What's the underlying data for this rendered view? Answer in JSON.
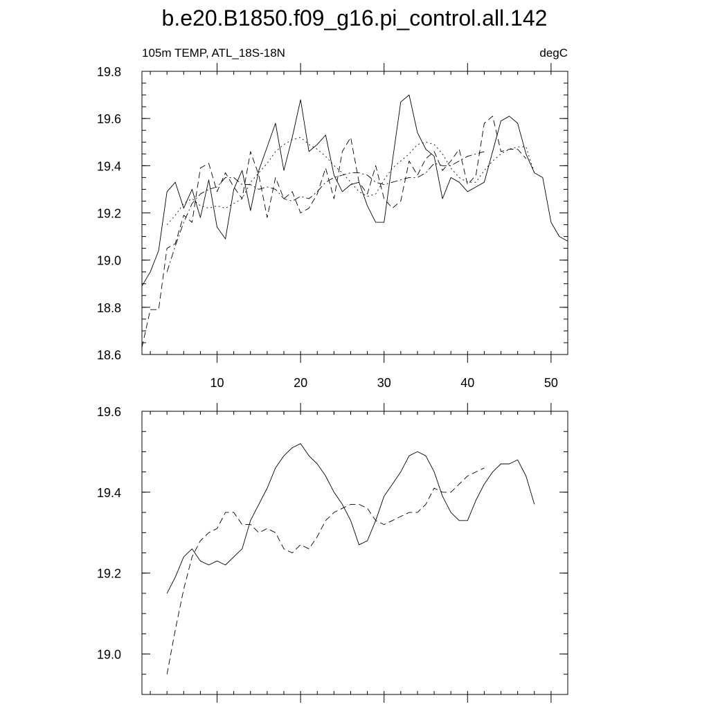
{
  "figure": {
    "title": "b.e20.B1850.f09_g16.pi_control.all.142"
  },
  "chart_data": [
    {
      "type": "line",
      "left_label": "105m TEMP, ATL_18S-18N",
      "right_label": "degC",
      "xlim": [
        1,
        52
      ],
      "ylim": [
        18.6,
        19.8
      ],
      "yticks": [
        18.6,
        18.8,
        19.0,
        19.2,
        19.4,
        19.6,
        19.8
      ],
      "xticks": [
        10,
        20,
        30,
        40,
        50
      ],
      "xtick_labels_shown": true,
      "series": [
        {
          "style": "solid",
          "x": [
            1,
            2,
            3,
            4,
            5,
            6,
            7,
            8,
            9,
            10,
            11,
            12,
            13,
            14,
            15,
            16,
            17,
            18,
            19,
            20,
            21,
            22,
            23,
            24,
            25,
            26,
            27,
            28,
            29,
            30,
            31,
            32,
            33,
            34,
            35,
            36,
            37,
            38,
            39,
            40,
            41,
            42,
            43,
            44,
            45,
            46,
            47,
            48,
            49,
            50,
            51,
            52
          ],
          "y": [
            18.89,
            18.95,
            19.04,
            19.29,
            19.33,
            19.22,
            19.3,
            19.18,
            19.34,
            19.14,
            19.09,
            19.3,
            19.38,
            19.21,
            19.38,
            19.48,
            19.58,
            19.38,
            19.52,
            19.68,
            19.46,
            19.49,
            19.53,
            19.36,
            19.29,
            19.32,
            19.33,
            19.23,
            19.16,
            19.16,
            19.42,
            19.67,
            19.7,
            19.54,
            19.47,
            19.44,
            19.26,
            19.35,
            19.33,
            19.29,
            19.31,
            19.33,
            19.46,
            19.59,
            19.61,
            19.58,
            19.45,
            19.37,
            19.35,
            19.16,
            19.1,
            19.08
          ]
        },
        {
          "style": "dashed",
          "x": [
            1,
            2,
            3,
            4,
            5,
            6,
            7,
            8,
            9,
            10,
            11,
            12,
            13,
            14,
            15,
            16,
            17,
            18,
            19,
            20,
            21,
            22,
            23,
            24,
            25,
            26,
            27,
            28,
            29,
            30,
            31,
            32,
            33,
            34,
            35,
            36,
            37,
            38,
            39,
            40,
            41,
            42,
            43,
            44,
            45,
            46,
            47
          ],
          "y": [
            18.63,
            18.79,
            18.79,
            19.05,
            19.07,
            19.19,
            19.16,
            19.39,
            19.41,
            19.29,
            19.37,
            19.31,
            19.26,
            19.46,
            19.36,
            19.18,
            19.35,
            19.26,
            19.29,
            19.2,
            19.22,
            19.28,
            19.39,
            19.26,
            19.46,
            19.52,
            19.33,
            19.28,
            19.4,
            19.26,
            19.22,
            19.25,
            19.42,
            19.36,
            19.43,
            19.46,
            19.38,
            19.42,
            19.47,
            19.32,
            19.36,
            19.58,
            19.61,
            19.46,
            19.47,
            19.47,
            19.43
          ]
        },
        {
          "style": "dotted",
          "x": [
            4,
            5,
            6,
            7,
            8,
            9,
            10,
            11,
            12,
            13,
            14,
            15,
            16,
            17,
            18,
            19,
            20,
            21,
            22,
            23,
            24,
            25,
            26,
            27,
            28,
            29,
            30,
            31,
            32,
            33,
            34,
            35,
            36,
            37,
            38,
            39,
            40,
            41,
            42,
            43,
            44,
            45,
            46,
            47,
            48
          ],
          "y": [
            19.15,
            19.19,
            19.24,
            19.26,
            19.23,
            19.22,
            19.23,
            19.22,
            19.24,
            19.26,
            19.33,
            19.37,
            19.41,
            19.46,
            19.49,
            19.51,
            19.52,
            19.49,
            19.47,
            19.44,
            19.4,
            19.37,
            19.33,
            19.29,
            19.27,
            19.28,
            19.34,
            19.39,
            19.42,
            19.45,
            19.49,
            19.5,
            19.49,
            19.45,
            19.39,
            19.35,
            19.33,
            19.33,
            19.38,
            19.42,
            19.45,
            19.47,
            19.48,
            19.48,
            19.37
          ]
        },
        {
          "style": "dashdot",
          "x": [
            4,
            5,
            6,
            7,
            8,
            9,
            10,
            11,
            12,
            13,
            14,
            15,
            16,
            17,
            18,
            19,
            20,
            21,
            22,
            23,
            24,
            25,
            26,
            27,
            28,
            29,
            30,
            31,
            32,
            33,
            34,
            35,
            36,
            37,
            38,
            39,
            40,
            41,
            42
          ],
          "y": [
            18.95,
            19.06,
            19.16,
            19.24,
            19.28,
            19.3,
            19.31,
            19.35,
            19.35,
            19.32,
            19.32,
            19.3,
            19.31,
            19.3,
            19.26,
            19.25,
            19.27,
            19.26,
            19.29,
            19.33,
            19.35,
            19.36,
            19.37,
            19.37,
            19.36,
            19.33,
            19.32,
            19.33,
            19.34,
            19.35,
            19.35,
            19.37,
            19.41,
            19.4,
            19.4,
            19.42,
            19.44,
            19.45,
            19.46
          ]
        }
      ]
    },
    {
      "type": "line",
      "xlim": [
        1,
        52
      ],
      "ylim": [
        18.9,
        19.6
      ],
      "yticks": [
        19.0,
        19.2,
        19.4,
        19.6
      ],
      "xticks": [
        10,
        20,
        30,
        40,
        50
      ],
      "xtick_labels_shown": false,
      "series": [
        {
          "style": "solid",
          "x": [
            4,
            5,
            6,
            7,
            8,
            9,
            10,
            11,
            12,
            13,
            14,
            15,
            16,
            17,
            18,
            19,
            20,
            21,
            22,
            23,
            24,
            25,
            26,
            27,
            28,
            29,
            30,
            31,
            32,
            33,
            34,
            35,
            36,
            37,
            38,
            39,
            40,
            41,
            42,
            43,
            44,
            45,
            46,
            47,
            48
          ],
          "y": [
            19.15,
            19.19,
            19.24,
            19.26,
            19.23,
            19.22,
            19.23,
            19.22,
            19.24,
            19.26,
            19.33,
            19.37,
            19.41,
            19.46,
            19.49,
            19.51,
            19.52,
            19.49,
            19.47,
            19.44,
            19.4,
            19.37,
            19.33,
            19.27,
            19.28,
            19.33,
            19.39,
            19.42,
            19.45,
            19.49,
            19.5,
            19.49,
            19.45,
            19.39,
            19.35,
            19.33,
            19.33,
            19.38,
            19.42,
            19.45,
            19.47,
            19.47,
            19.48,
            19.44,
            19.37
          ]
        },
        {
          "style": "dashed",
          "x": [
            4,
            5,
            6,
            7,
            8,
            9,
            10,
            11,
            12,
            13,
            14,
            15,
            16,
            17,
            18,
            19,
            20,
            21,
            22,
            23,
            24,
            25,
            26,
            27,
            28,
            29,
            30,
            31,
            32,
            33,
            34,
            35,
            36,
            37,
            38,
            39,
            40,
            41,
            42
          ],
          "y": [
            18.95,
            19.06,
            19.16,
            19.24,
            19.28,
            19.3,
            19.31,
            19.35,
            19.35,
            19.32,
            19.32,
            19.3,
            19.31,
            19.3,
            19.26,
            19.25,
            19.27,
            19.26,
            19.29,
            19.33,
            19.35,
            19.36,
            19.37,
            19.37,
            19.36,
            19.33,
            19.32,
            19.33,
            19.34,
            19.35,
            19.35,
            19.37,
            19.41,
            19.4,
            19.4,
            19.42,
            19.44,
            19.45,
            19.46
          ]
        }
      ]
    }
  ]
}
